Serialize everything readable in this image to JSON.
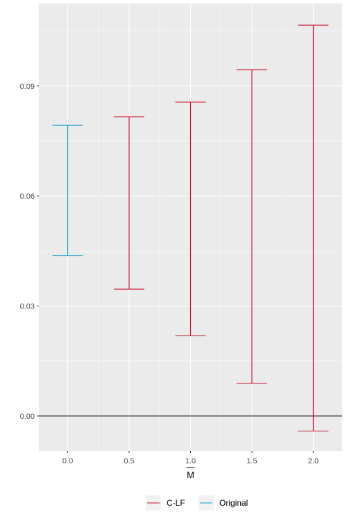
{
  "chart_data": {
    "type": "errorbar",
    "title": "",
    "xlabel": "M",
    "xlabel_overline": true,
    "ylabel": "",
    "x_ticks": [
      0.0,
      0.5,
      1.0,
      1.5,
      2.0
    ],
    "x_tick_labels": [
      "0.0",
      "0.5",
      "1.0",
      "1.5",
      "2.0"
    ],
    "y_ticks": [
      0.0,
      0.03,
      0.06,
      0.09
    ],
    "y_tick_labels": [
      "0.00",
      "0.03",
      "0.06",
      "0.09"
    ],
    "xlim": [
      -0.235,
      2.235
    ],
    "ylim": [
      -0.0095,
      0.1125
    ],
    "hline_y": 0,
    "grid": true,
    "legend_position": "bottom",
    "series": [
      {
        "name": "C-LF",
        "color": "#c8102e",
        "points": [
          {
            "x": 0.5,
            "lower": 0.0346,
            "upper": 0.0816
          },
          {
            "x": 1.0,
            "lower": 0.0219,
            "upper": 0.0856
          },
          {
            "x": 1.5,
            "lower": 0.0089,
            "upper": 0.0944
          },
          {
            "x": 2.0,
            "lower": -0.0041,
            "upper": 0.1066
          }
        ]
      },
      {
        "name": "Original",
        "color": "#1a9bc7",
        "points": [
          {
            "x": 0.0,
            "lower": 0.0438,
            "upper": 0.0793
          }
        ]
      }
    ]
  }
}
